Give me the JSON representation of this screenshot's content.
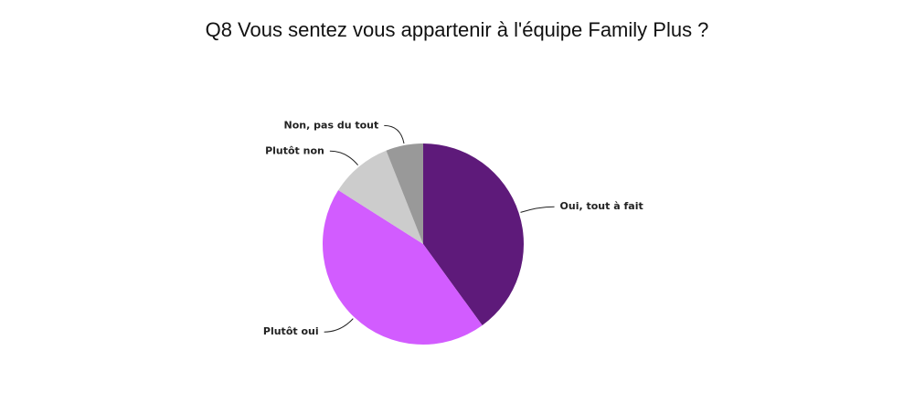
{
  "chart_data": {
    "type": "pie",
    "title": "Q8 Vous sentez vous appartenir à l'équipe Family Plus ?",
    "categories": [
      "Oui, tout à fait",
      "Plutôt oui",
      "Plutôt non",
      "Non, pas du tout"
    ],
    "values": [
      40,
      44,
      10,
      6
    ],
    "colors": [
      "#5e1a7a",
      "#d25cff",
      "#cccccc",
      "#999999"
    ]
  }
}
